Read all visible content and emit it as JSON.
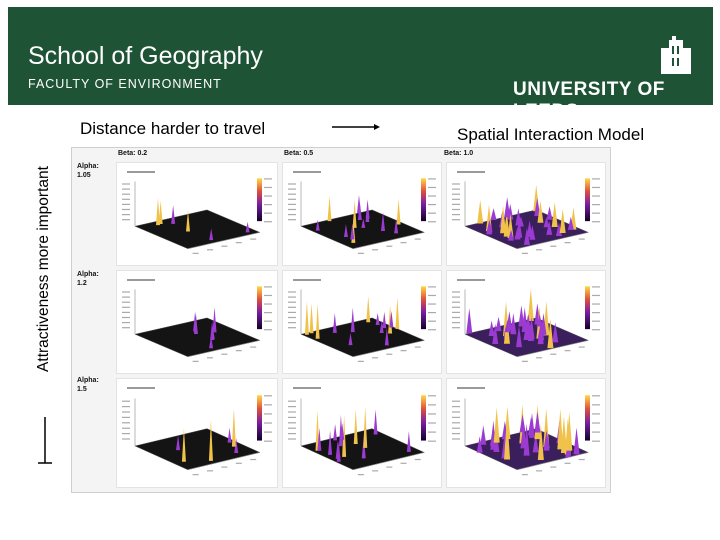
{
  "header": {
    "title": "School of Geography",
    "subtitle": "FACULTY OF ENVIRONMENT",
    "logo_text": "UNIVERSITY OF LEEDS",
    "bg_color": "#1f5335"
  },
  "axes": {
    "x_label": "Distance harder to travel",
    "y_label": "Attractiveness more important"
  },
  "right_title": "Spatial Interaction Model",
  "grid": {
    "columns": [
      "Beta: 0.2",
      "Beta: 0.5",
      "Beta: 1.0"
    ],
    "rows": [
      {
        "label": "Alpha:",
        "value": "1.05"
      },
      {
        "label": "Alpha:",
        "value": "1.2"
      },
      {
        "label": "Alpha:",
        "value": "1.5"
      }
    ]
  }
}
